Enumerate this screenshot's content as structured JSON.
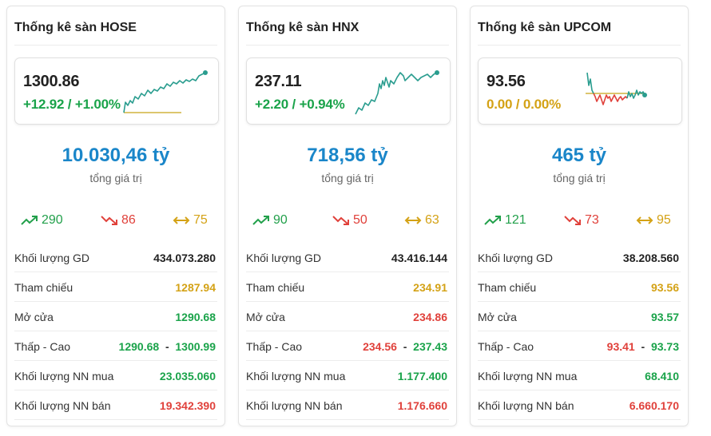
{
  "colors": {
    "up": "#22a04b",
    "down": "#e0413b",
    "reference": "#d4a216",
    "total": "#1a86c9",
    "line": "#2a9d8f"
  },
  "markets": [
    {
      "title": "Thống kê sàn HOSE",
      "index_value": "1300.86",
      "change": "+12.92 / +1.00%",
      "change_color": "up",
      "total_value": "10.030,46 tỷ",
      "total_label": "tổng giá trị",
      "advancers": "290",
      "decliners": "86",
      "unchanged": "75",
      "rows": {
        "volume": {
          "label": "Khối lượng GD",
          "value": "434.073.280"
        },
        "reference": {
          "label": "Tham chiếu",
          "value": "1287.94"
        },
        "open": {
          "label": "Mở cửa",
          "value": "1290.68"
        },
        "low_high": {
          "label": "Thấp - Cao",
          "low": "1290.68",
          "sep": "-",
          "high": "1300.99"
        },
        "foreign_buy": {
          "label": "Khối lượng NN mua",
          "value": "23.035.060"
        },
        "foreign_sell": {
          "label": "Khối lượng NN bán",
          "value": "19.342.390"
        }
      }
    },
    {
      "title": "Thống kê sàn HNX",
      "index_value": "237.11",
      "change": "+2.20 / +0.94%",
      "change_color": "up",
      "total_value": "718,56 tỷ",
      "total_label": "tổng giá trị",
      "advancers": "90",
      "decliners": "50",
      "unchanged": "63",
      "rows": {
        "volume": {
          "label": "Khối lượng GD",
          "value": "43.416.144"
        },
        "reference": {
          "label": "Tham chiếu",
          "value": "234.91"
        },
        "open": {
          "label": "Mở cửa",
          "value": "234.86"
        },
        "low_high": {
          "label": "Thấp - Cao",
          "low": "234.56",
          "sep": "-",
          "high": "237.43"
        },
        "foreign_buy": {
          "label": "Khối lượng NN mua",
          "value": "1.177.400"
        },
        "foreign_sell": {
          "label": "Khối lượng NN bán",
          "value": "1.176.660"
        }
      }
    },
    {
      "title": "Thống kê sàn UPCOM",
      "index_value": "93.56",
      "change": "0.00 / 0.00%",
      "change_color": "reference",
      "total_value": "465 tỷ",
      "total_label": "tổng giá trị",
      "advancers": "121",
      "decliners": "73",
      "unchanged": "95",
      "rows": {
        "volume": {
          "label": "Khối lượng GD",
          "value": "38.208.560"
        },
        "reference": {
          "label": "Tham chiếu",
          "value": "93.56"
        },
        "open": {
          "label": "Mở cửa",
          "value": "93.57"
        },
        "low_high": {
          "label": "Thấp - Cao",
          "low": "93.41",
          "sep": "-",
          "high": "93.73"
        },
        "foreign_buy": {
          "label": "Khối lượng NN mua",
          "value": "68.410"
        },
        "foreign_sell": {
          "label": "Khối lượng NN bán",
          "value": "6.660.170"
        }
      }
    }
  ]
}
